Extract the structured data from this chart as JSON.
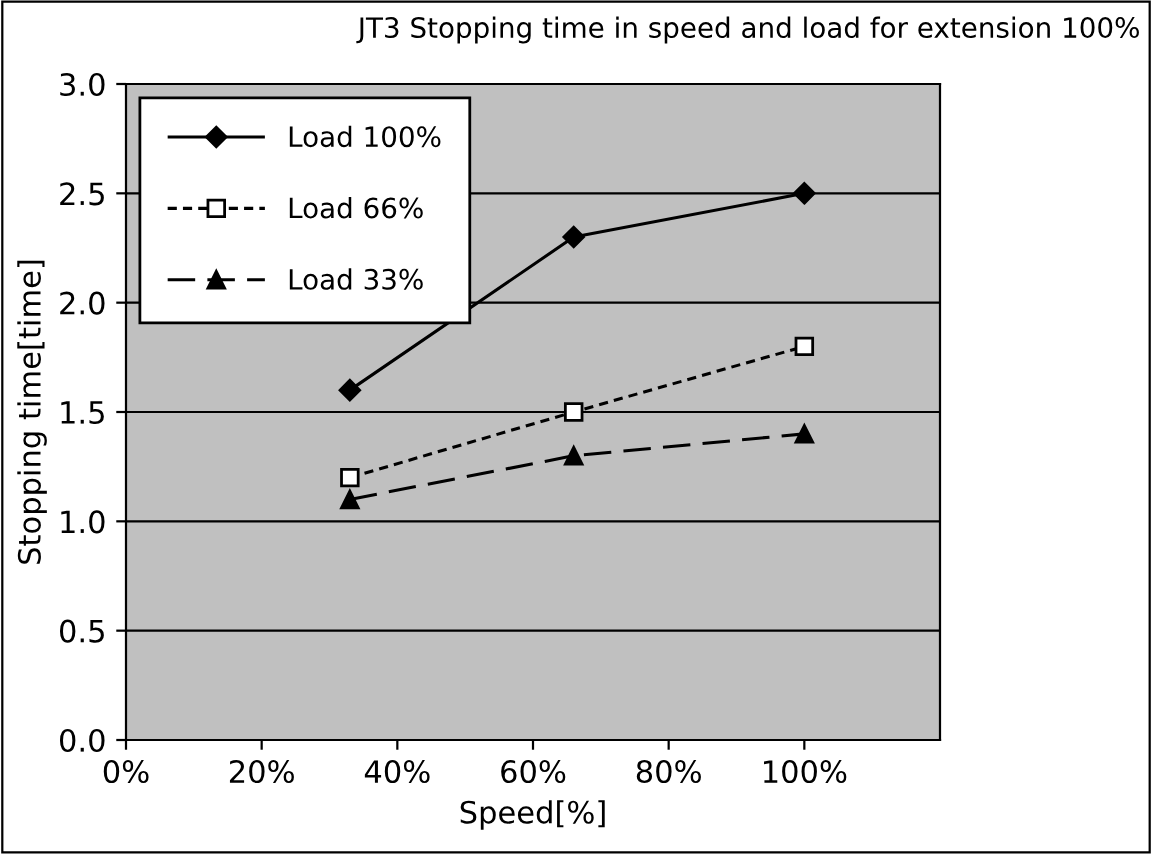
{
  "chart_data": {
    "type": "line",
    "title": "JT3 Stopping time in speed and load for extension 100%",
    "xlabel": "Speed[%]",
    "ylabel": "Stopping time[time]",
    "xlim": [
      0,
      120
    ],
    "xticks": [
      {
        "value": 0,
        "label": "0%"
      },
      {
        "value": 20,
        "label": "20%"
      },
      {
        "value": 40,
        "label": "40%"
      },
      {
        "value": 60,
        "label": "60%"
      },
      {
        "value": 80,
        "label": "80%"
      },
      {
        "value": 100,
        "label": "100%"
      }
    ],
    "ylim": [
      0,
      3
    ],
    "yticks": [
      {
        "value": 0,
        "label": "0.0"
      },
      {
        "value": 0.5,
        "label": "0.5"
      },
      {
        "value": 1,
        "label": "1.0"
      },
      {
        "value": 1.5,
        "label": "1.5"
      },
      {
        "value": 2,
        "label": "2.0"
      },
      {
        "value": 2.5,
        "label": "2.5"
      },
      {
        "value": 3,
        "label": "3.0"
      }
    ],
    "grid": "y",
    "legend": "top left",
    "series": [
      {
        "name": "Load 100%",
        "color": "#000000",
        "x": [
          33,
          66,
          100
        ],
        "values": [
          1.6,
          2.3,
          2.5
        ],
        "marker": "diamond",
        "line_style": "solid"
      },
      {
        "name": "Load 66%",
        "color": "#000000",
        "x": [
          33,
          66,
          100
        ],
        "values": [
          1.2,
          1.5,
          1.8
        ],
        "marker": "square",
        "line_style": "dotted"
      },
      {
        "name": "Load 33%",
        "color": "#000000",
        "x": [
          33,
          66,
          100
        ],
        "values": [
          1.1,
          1.3,
          1.4
        ],
        "marker": "triangle",
        "line_style": "dashed"
      }
    ]
  }
}
